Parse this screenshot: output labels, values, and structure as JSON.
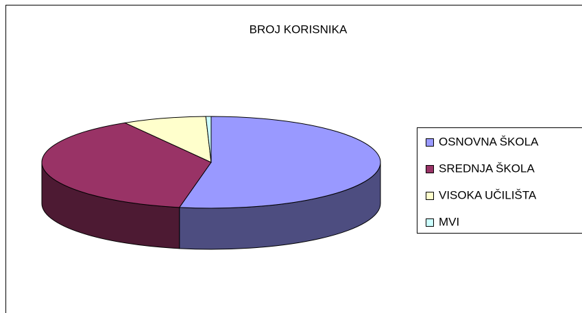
{
  "chart_data": {
    "type": "pie3d",
    "title": "BROJ KORISNIKA",
    "categories": [
      "OSNOVNA ŠKOLA",
      "SREDNJA ŠKOLA",
      "VISOKA UČILIŠTA",
      "MVI"
    ],
    "values": [
      53,
      38.5,
      8,
      0.5
    ],
    "colors": [
      "#9999ff",
      "#993366",
      "#ffffcc",
      "#ccffff"
    ],
    "legend": "right"
  }
}
